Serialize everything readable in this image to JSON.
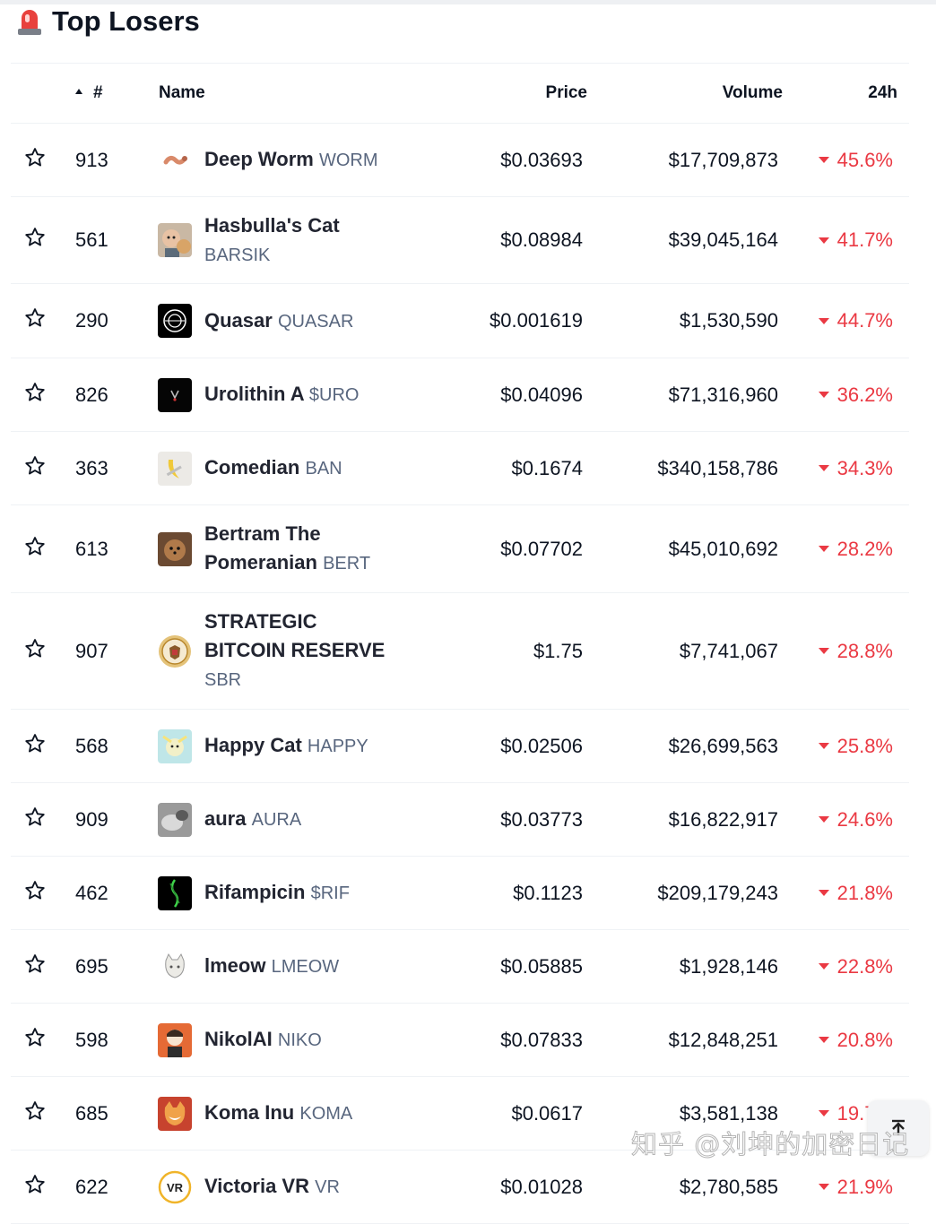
{
  "header": {
    "title": "Top Losers",
    "icon": "siren-icon"
  },
  "columns": {
    "rank": "#",
    "name": "Name",
    "price": "Price",
    "volume": "Volume",
    "change": "24h"
  },
  "colors": {
    "negative": "#ea3943",
    "text": "#0d1421",
    "muted": "#58667e",
    "divider": "#eff2f5"
  },
  "rows": [
    {
      "rank": "913",
      "name": "Deep Worm",
      "symbol": "WORM",
      "symbol_newline": false,
      "price": "$0.03693",
      "volume": "$17,709,873",
      "change": "45.6%",
      "logo": "worm-logo"
    },
    {
      "rank": "561",
      "name": "Hasbulla's Cat",
      "symbol": "BARSIK",
      "symbol_newline": true,
      "price": "$0.08984",
      "volume": "$39,045,164",
      "change": "41.7%",
      "logo": "hasbulla-cat-logo"
    },
    {
      "rank": "290",
      "name": "Quasar",
      "symbol": "QUASAR",
      "symbol_newline": false,
      "price": "$0.001619",
      "volume": "$1,530,590",
      "change": "44.7%",
      "logo": "quasar-logo"
    },
    {
      "rank": "826",
      "name": "Urolithin A",
      "symbol": "$URO",
      "symbol_newline": false,
      "price": "$0.04096",
      "volume": "$71,316,960",
      "change": "36.2%",
      "logo": "urolithin-logo"
    },
    {
      "rank": "363",
      "name": "Comedian",
      "symbol": "BAN",
      "symbol_newline": false,
      "price": "$0.1674",
      "volume": "$340,158,786",
      "change": "34.3%",
      "logo": "banana-logo"
    },
    {
      "rank": "613",
      "name": "Bertram The Pomeranian",
      "symbol": "BERT",
      "symbol_newline": false,
      "price": "$0.07702",
      "volume": "$45,010,692",
      "change": "28.2%",
      "logo": "pomeranian-logo"
    },
    {
      "rank": "907",
      "name": "STRATEGIC BITCOIN RESERVE",
      "symbol": "SBR",
      "symbol_newline": true,
      "price": "$1.75",
      "volume": "$7,741,067",
      "change": "28.8%",
      "logo": "seal-logo"
    },
    {
      "rank": "568",
      "name": "Happy Cat",
      "symbol": "HAPPY",
      "symbol_newline": false,
      "price": "$0.02506",
      "volume": "$26,699,563",
      "change": "25.8%",
      "logo": "happy-cat-logo"
    },
    {
      "rank": "909",
      "name": "aura",
      "symbol": "AURA",
      "symbol_newline": false,
      "price": "$0.03773",
      "volume": "$16,822,917",
      "change": "24.6%",
      "logo": "aura-logo"
    },
    {
      "rank": "462",
      "name": "Rifampicin",
      "symbol": "$RIF",
      "symbol_newline": false,
      "price": "$0.1123",
      "volume": "$209,179,243",
      "change": "21.8%",
      "logo": "rifampicin-logo"
    },
    {
      "rank": "695",
      "name": "lmeow",
      "symbol": "LMEOW",
      "symbol_newline": false,
      "price": "$0.05885",
      "volume": "$1,928,146",
      "change": "22.8%",
      "logo": "lmeow-logo"
    },
    {
      "rank": "598",
      "name": "NikolAI",
      "symbol": "NIKO",
      "symbol_newline": false,
      "price": "$0.07833",
      "volume": "$12,848,251",
      "change": "20.8%",
      "logo": "nikolai-logo"
    },
    {
      "rank": "685",
      "name": "Koma Inu",
      "symbol": "KOMA",
      "symbol_newline": false,
      "price": "$0.0617",
      "volume": "$3,581,138",
      "change": "19.7%",
      "logo": "koma-logo"
    },
    {
      "rank": "622",
      "name": "Victoria VR",
      "symbol": "VR",
      "symbol_newline": false,
      "price": "$0.01028",
      "volume": "$2,780,585",
      "change": "21.9%",
      "logo": "victoria-vr-logo"
    }
  ],
  "back_to_top": {
    "icon": "back-to-top-icon"
  },
  "watermark": "知乎 @刘坤的加密日记"
}
